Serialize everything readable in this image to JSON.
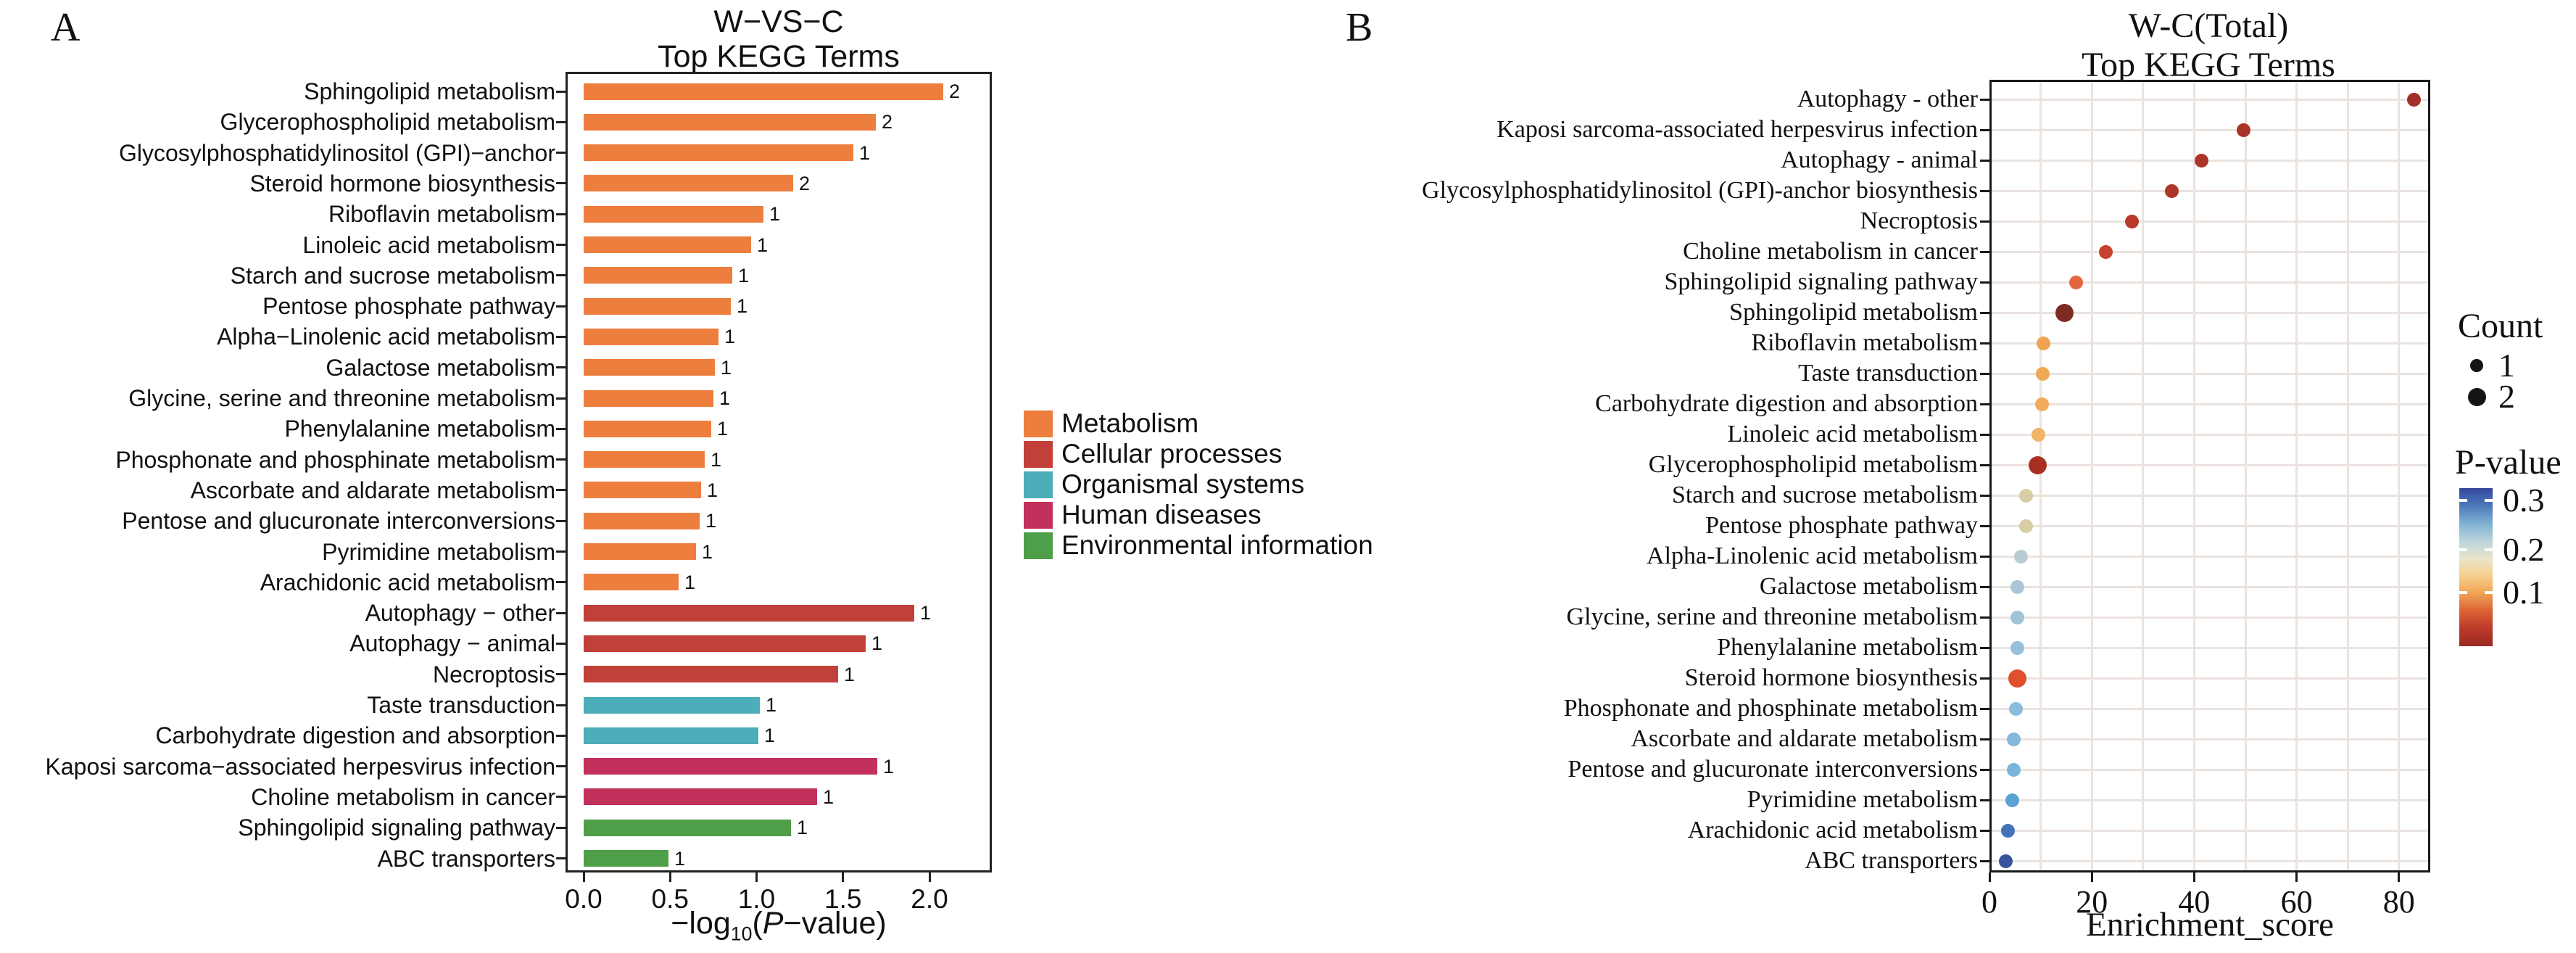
{
  "figure": {
    "panel_a_letter": "A",
    "panel_b_letter": "B"
  },
  "chart_data": [
    {
      "type": "bar",
      "orientation": "horizontal",
      "panel": "A",
      "title": [
        "W−VS−C",
        "Top KEGG Terms"
      ],
      "xlabel": {
        "pre": "−log",
        "sub": "10",
        "open": "(",
        "p": "P",
        "close": "−value)"
      },
      "xlim": [
        0,
        2.36
      ],
      "x_ticks": [
        0,
        0.5,
        1,
        1.5,
        2
      ],
      "x_tick_labels": [
        "0.0",
        "0.5",
        "1.0",
        "1.5",
        "2.0"
      ],
      "grid": false,
      "legend_position": "right-middle",
      "groups": [
        {
          "name": "Metabolism",
          "color": "#EE7E3E"
        },
        {
          "name": "Cellular processes",
          "color": "#C1413A"
        },
        {
          "name": "Organismal systems",
          "color": "#4BAEB8"
        },
        {
          "name": "Human diseases",
          "color": "#C2315B"
        },
        {
          "name": "Environmental information",
          "color": "#4F9E48"
        }
      ],
      "bars": [
        {
          "label": "Sphingolipid metabolism",
          "value": 2.08,
          "count": "2",
          "group": 0
        },
        {
          "label": "Glycerophospholipid metabolism",
          "value": 1.69,
          "count": "2",
          "group": 0
        },
        {
          "label": "Glycosylphosphatidylinositol (GPI)−anchor",
          "value": 1.56,
          "count": "1",
          "group": 0
        },
        {
          "label": "Steroid hormone biosynthesis",
          "value": 1.21,
          "count": "2",
          "group": 0
        },
        {
          "label": "Riboflavin metabolism",
          "value": 1.04,
          "count": "1",
          "group": 0
        },
        {
          "label": "Linoleic acid metabolism",
          "value": 0.97,
          "count": "1",
          "group": 0
        },
        {
          "label": "Starch and sucrose metabolism",
          "value": 0.86,
          "count": "1",
          "group": 0
        },
        {
          "label": "Pentose phosphate pathway",
          "value": 0.85,
          "count": "1",
          "group": 0
        },
        {
          "label": "Alpha−Linolenic acid metabolism",
          "value": 0.78,
          "count": "1",
          "group": 0
        },
        {
          "label": "Galactose metabolism",
          "value": 0.76,
          "count": "1",
          "group": 0
        },
        {
          "label": "Glycine, serine and threonine metabolism",
          "value": 0.75,
          "count": "1",
          "group": 0
        },
        {
          "label": "Phenylalanine metabolism",
          "value": 0.74,
          "count": "1",
          "group": 0
        },
        {
          "label": "Phosphonate and phosphinate metabolism",
          "value": 0.7,
          "count": "1",
          "group": 0
        },
        {
          "label": "Ascorbate and aldarate metabolism",
          "value": 0.68,
          "count": "1",
          "group": 0
        },
        {
          "label": "Pentose and glucuronate interconversions",
          "value": 0.67,
          "count": "1",
          "group": 0
        },
        {
          "label": "Pyrimidine metabolism",
          "value": 0.65,
          "count": "1",
          "group": 0
        },
        {
          "label": "Arachidonic acid metabolism",
          "value": 0.55,
          "count": "1",
          "group": 0
        },
        {
          "label": "Autophagy − other",
          "value": 1.91,
          "count": "1",
          "group": 1
        },
        {
          "label": "Autophagy − animal",
          "value": 1.63,
          "count": "1",
          "group": 1
        },
        {
          "label": "Necroptosis",
          "value": 1.47,
          "count": "1",
          "group": 1
        },
        {
          "label": "Taste transduction",
          "value": 1.02,
          "count": "1",
          "group": 2
        },
        {
          "label": "Carbohydrate digestion and absorption",
          "value": 1.01,
          "count": "1",
          "group": 2
        },
        {
          "label": "Kaposi sarcoma−associated herpesvirus infection",
          "value": 1.7,
          "count": "1",
          "group": 3
        },
        {
          "label": "Choline metabolism in cancer",
          "value": 1.35,
          "count": "1",
          "group": 3
        },
        {
          "label": "Sphingolipid signaling pathway",
          "value": 1.2,
          "count": "1",
          "group": 4
        },
        {
          "label": "ABC transporters",
          "value": 0.49,
          "count": "1",
          "group": 4
        }
      ]
    },
    {
      "type": "scatter",
      "panel": "B",
      "title": [
        "W-C(Total)",
        "Top KEGG Terms"
      ],
      "xlabel": "Enrichment_score",
      "xlim": [
        0,
        86
      ],
      "x_ticks": [
        0,
        20,
        40,
        60,
        80
      ],
      "x_tick_labels": [
        "0",
        "20",
        "40",
        "60",
        "80"
      ],
      "grid": true,
      "points": [
        {
          "label": "Autophagy - other",
          "value": 83.0,
          "count": 1,
          "color": "#A23026"
        },
        {
          "label": "Kaposi sarcoma-associated herpesvirus infection",
          "value": 49.6,
          "count": 1,
          "color": "#A93327"
        },
        {
          "label": "Autophagy - animal",
          "value": 41.5,
          "count": 1,
          "color": "#AC3428"
        },
        {
          "label": "Glycosylphosphatidylinositol (GPI)-anchor biosynthesis",
          "value": 35.6,
          "count": 1,
          "color": "#AE3629"
        },
        {
          "label": "Necroptosis",
          "value": 27.8,
          "count": 1,
          "color": "#B73A2A"
        },
        {
          "label": "Choline metabolism in cancer",
          "value": 22.8,
          "count": 1,
          "color": "#C8402E"
        },
        {
          "label": "Sphingolipid signaling pathway",
          "value": 16.9,
          "count": 1,
          "color": "#E2673F"
        },
        {
          "label": "Sphingolipid metabolism",
          "value": 14.6,
          "count": 2,
          "color": "#7E2B22"
        },
        {
          "label": "Riboflavin metabolism",
          "value": 10.6,
          "count": 1,
          "color": "#F0A351"
        },
        {
          "label": "Taste transduction",
          "value": 10.4,
          "count": 1,
          "color": "#F0A855"
        },
        {
          "label": "Carbohydrate digestion and absorption",
          "value": 10.2,
          "count": 1,
          "color": "#F0AB5B"
        },
        {
          "label": "Linoleic acid metabolism",
          "value": 9.5,
          "count": 1,
          "color": "#F2B467"
        },
        {
          "label": "Glycerophospholipid metabolism",
          "value": 9.4,
          "count": 2,
          "color": "#A82F23"
        },
        {
          "label": "Starch and sucrose metabolism",
          "value": 7.2,
          "count": 1,
          "color": "#D9CEA3"
        },
        {
          "label": "Pentose phosphate pathway",
          "value": 7.1,
          "count": 1,
          "color": "#D7CDA7"
        },
        {
          "label": "Alpha-Linolenic acid metabolism",
          "value": 6.1,
          "count": 1,
          "color": "#B9CCD3"
        },
        {
          "label": "Galactose metabolism",
          "value": 5.5,
          "count": 1,
          "color": "#A9C7D6"
        },
        {
          "label": "Glycine, serine and threonine metabolism",
          "value": 5.5,
          "count": 1,
          "color": "#9FC3D8"
        },
        {
          "label": "Phenylalanine metabolism",
          "value": 5.5,
          "count": 1,
          "color": "#95BFDA"
        },
        {
          "label": "Steroid hormone biosynthesis",
          "value": 5.5,
          "count": 2,
          "color": "#E0502C"
        },
        {
          "label": "Phosphonate and phosphinate metabolism",
          "value": 5.2,
          "count": 1,
          "color": "#8CBCDB"
        },
        {
          "label": "Ascorbate and aldarate metabolism",
          "value": 4.8,
          "count": 1,
          "color": "#83B8DB"
        },
        {
          "label": "Pentose and glucuronate interconversions",
          "value": 4.7,
          "count": 1,
          "color": "#7BB4DB"
        },
        {
          "label": "Pyrimidine metabolism",
          "value": 4.4,
          "count": 1,
          "color": "#5CA2D2"
        },
        {
          "label": "Arachidonic acid metabolism",
          "value": 3.6,
          "count": 1,
          "color": "#4273B8"
        },
        {
          "label": "ABC transporters",
          "value": 3.2,
          "count": 1,
          "color": "#38539E"
        }
      ],
      "count_legend": {
        "title": "Count",
        "items": [
          {
            "label": "1",
            "count": 1
          },
          {
            "label": "2",
            "count": 2
          }
        ]
      },
      "pvalue_legend": {
        "title": "P-value",
        "tick_labels": [
          "0.3",
          "0.2",
          "0.1"
        ],
        "gradient_top_to_bottom": [
          "#36489E",
          "#4B79BA",
          "#7FB0D3",
          "#BAD4DC",
          "#E9E6CB",
          "#F6CE8C",
          "#F0A355",
          "#DC6135",
          "#BC3A2A",
          "#9A2A21"
        ]
      }
    }
  ]
}
